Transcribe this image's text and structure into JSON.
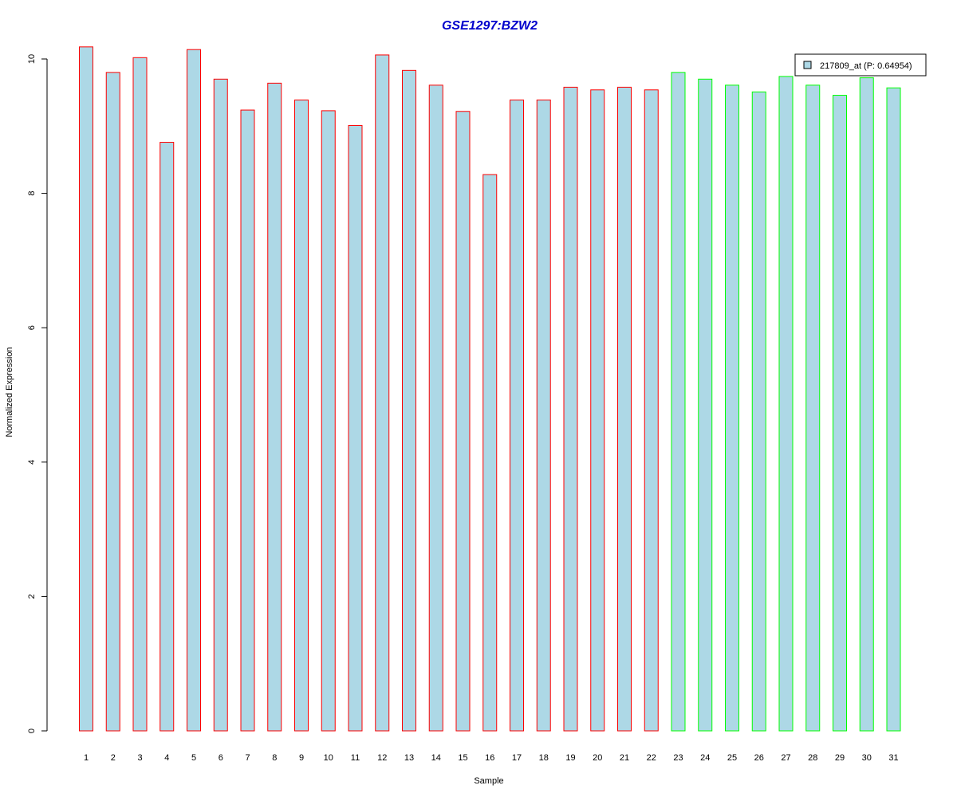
{
  "chart_data": {
    "type": "bar",
    "title": "GSE1297:BZW2",
    "xlabel": "Sample",
    "ylabel": "Normalized Expression",
    "categories": [
      "1",
      "2",
      "3",
      "4",
      "5",
      "6",
      "7",
      "8",
      "9",
      "10",
      "11",
      "12",
      "13",
      "14",
      "15",
      "16",
      "17",
      "18",
      "19",
      "20",
      "21",
      "22",
      "23",
      "24",
      "25",
      "26",
      "27",
      "28",
      "29",
      "30",
      "31"
    ],
    "series": [
      {
        "name": "217809_at (P: 0.64954)",
        "values": [
          10.18,
          9.8,
          10.02,
          8.76,
          10.14,
          9.7,
          9.24,
          9.64,
          9.39,
          9.23,
          9.01,
          10.06,
          9.83,
          9.61,
          9.22,
          8.28,
          9.39,
          9.39,
          9.58,
          9.54,
          9.58,
          9.54,
          9.8,
          9.7,
          9.61,
          9.51,
          9.74,
          9.61,
          9.46,
          9.72,
          9.57
        ]
      }
    ],
    "groups": [
      {
        "from": 1,
        "to": 22,
        "border_color": "#ff0000"
      },
      {
        "from": 23,
        "to": 31,
        "border_color": "#00ff00"
      }
    ],
    "bar_fill": "#add8e6",
    "title_color": "#0000cc",
    "ylim": [
      0,
      10.2
    ],
    "yticks": [
      0,
      2,
      4,
      6,
      8,
      10
    ],
    "grid": false,
    "legend": "top-right"
  }
}
